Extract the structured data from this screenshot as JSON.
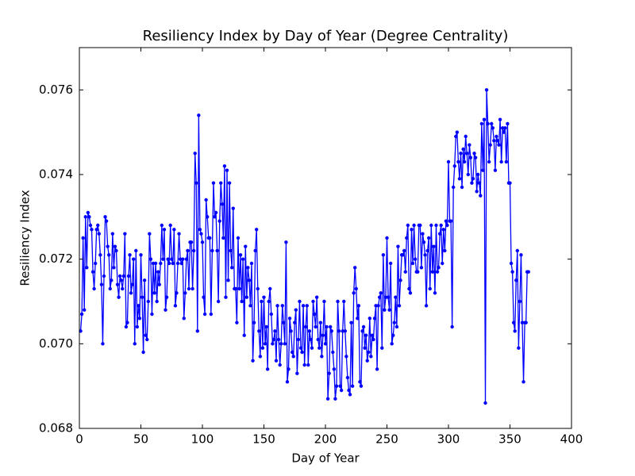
{
  "chart_data": {
    "type": "line",
    "title": "Resiliency Index by Day of Year (Degree Centrality)",
    "xlabel": "Day of Year",
    "ylabel": "Resiliency Index",
    "color": "#0000ff",
    "xlim": [
      0,
      400
    ],
    "xticks": [
      0,
      50,
      100,
      150,
      200,
      250,
      300,
      350,
      400
    ],
    "ylim": [
      0.068,
      0.077
    ],
    "yticks": [
      0.068,
      {
        "value": 0.07,
        "label": "0.070"
      },
      0.072,
      0.074,
      0.076
    ],
    "x": [
      1,
      2,
      3,
      4,
      5,
      6,
      7,
      8,
      9,
      10,
      11,
      12,
      13,
      14,
      15,
      16,
      17,
      18,
      19,
      20,
      21,
      22,
      23,
      24,
      25,
      26,
      27,
      28,
      29,
      30,
      31,
      32,
      33,
      34,
      35,
      36,
      37,
      38,
      39,
      40,
      41,
      42,
      43,
      44,
      45,
      46,
      47,
      48,
      49,
      50,
      51,
      52,
      53,
      54,
      55,
      56,
      57,
      58,
      59,
      60,
      61,
      62,
      63,
      64,
      65,
      66,
      67,
      68,
      69,
      70,
      71,
      72,
      73,
      74,
      75,
      76,
      77,
      78,
      79,
      80,
      81,
      82,
      83,
      84,
      85,
      86,
      87,
      88,
      89,
      90,
      91,
      92,
      93,
      94,
      95,
      96,
      97,
      98,
      99,
      100,
      101,
      102,
      103,
      104,
      105,
      106,
      107,
      108,
      109,
      110,
      111,
      112,
      113,
      114,
      115,
      116,
      117,
      118,
      119,
      120,
      121,
      122,
      123,
      124,
      125,
      126,
      127,
      128,
      129,
      130,
      131,
      132,
      133,
      134,
      135,
      136,
      137,
      138,
      139,
      140,
      141,
      142,
      143,
      144,
      145,
      146,
      147,
      148,
      149,
      150,
      151,
      152,
      153,
      154,
      155,
      156,
      157,
      158,
      159,
      160,
      161,
      162,
      163,
      164,
      165,
      166,
      167,
      168,
      169,
      170,
      171,
      172,
      173,
      174,
      175,
      176,
      177,
      178,
      179,
      180,
      181,
      182,
      183,
      184,
      185,
      186,
      187,
      188,
      189,
      190,
      191,
      192,
      193,
      194,
      195,
      196,
      197,
      198,
      199,
      200,
      201,
      202,
      203,
      204,
      205,
      206,
      207,
      208,
      209,
      210,
      211,
      212,
      213,
      214,
      215,
      216,
      217,
      218,
      219,
      220,
      221,
      222,
      223,
      224,
      225,
      226,
      227,
      228,
      229,
      230,
      231,
      232,
      233,
      234,
      235,
      236,
      237,
      238,
      239,
      240,
      241,
      242,
      243,
      244,
      245,
      246,
      247,
      248,
      249,
      250,
      251,
      252,
      253,
      254,
      255,
      256,
      257,
      258,
      259,
      260,
      261,
      262,
      263,
      264,
      265,
      266,
      267,
      268,
      269,
      270,
      271,
      272,
      273,
      274,
      275,
      276,
      277,
      278,
      279,
      280,
      281,
      282,
      283,
      284,
      285,
      286,
      287,
      288,
      289,
      290,
      291,
      292,
      293,
      294,
      295,
      296,
      297,
      298,
      299,
      300,
      301,
      302,
      303,
      304,
      305,
      306,
      307,
      308,
      309,
      310,
      311,
      312,
      313,
      314,
      315,
      316,
      317,
      318,
      319,
      320,
      321,
      322,
      323,
      324,
      325,
      326,
      327,
      328,
      329,
      330,
      331,
      332,
      333,
      334,
      335,
      336,
      337,
      338,
      339,
      340,
      341,
      342,
      343,
      344,
      345,
      346,
      347,
      348,
      349,
      350,
      351,
      352,
      353,
      354,
      355,
      356,
      357,
      358,
      359,
      360,
      361,
      362,
      363,
      364,
      365
    ],
    "values": [
      0.0703,
      0.0707,
      0.0725,
      0.0708,
      0.073,
      0.0718,
      0.0731,
      0.073,
      0.0728,
      0.0727,
      0.0717,
      0.0713,
      0.0719,
      0.0727,
      0.0728,
      0.0726,
      0.0721,
      0.0714,
      0.07,
      0.0716,
      0.073,
      0.0729,
      0.0723,
      0.0721,
      0.0713,
      0.0715,
      0.0726,
      0.0718,
      0.0723,
      0.0722,
      0.0714,
      0.0711,
      0.0716,
      0.0715,
      0.0713,
      0.0716,
      0.0726,
      0.0704,
      0.0705,
      0.0716,
      0.0721,
      0.0712,
      0.0714,
      0.072,
      0.07,
      0.0722,
      0.0704,
      0.0709,
      0.0706,
      0.0721,
      0.0711,
      0.0698,
      0.0715,
      0.0702,
      0.0701,
      0.071,
      0.0726,
      0.072,
      0.0707,
      0.0719,
      0.0712,
      0.0719,
      0.071,
      0.0717,
      0.0714,
      0.0719,
      0.0728,
      0.072,
      0.0727,
      0.0708,
      0.0711,
      0.072,
      0.0719,
      0.0728,
      0.072,
      0.0719,
      0.0727,
      0.0709,
      0.0712,
      0.0719,
      0.0726,
      0.072,
      0.0719,
      0.072,
      0.0706,
      0.0712,
      0.072,
      0.0722,
      0.0713,
      0.0724,
      0.0724,
      0.0713,
      0.0722,
      0.0745,
      0.0738,
      0.0703,
      0.0754,
      0.0727,
      0.0726,
      0.0724,
      0.0711,
      0.0707,
      0.0734,
      0.073,
      0.0725,
      0.0725,
      0.0707,
      0.0722,
      0.0738,
      0.073,
      0.0731,
      0.0722,
      0.071,
      0.0729,
      0.0738,
      0.0733,
      0.0725,
      0.0742,
      0.0711,
      0.0741,
      0.0715,
      0.0738,
      0.0722,
      0.0718,
      0.0732,
      0.0713,
      0.0713,
      0.0705,
      0.0725,
      0.0713,
      0.0721,
      0.071,
      0.072,
      0.0702,
      0.0723,
      0.0711,
      0.0718,
      0.0715,
      0.0709,
      0.0719,
      0.0696,
      0.0705,
      0.0722,
      0.0727,
      0.0713,
      0.0703,
      0.0697,
      0.071,
      0.0699,
      0.0711,
      0.07,
      0.0704,
      0.0694,
      0.071,
      0.0713,
      0.0707,
      0.07,
      0.0701,
      0.0703,
      0.0696,
      0.0709,
      0.0701,
      0.0695,
      0.07,
      0.0709,
      0.0705,
      0.07,
      0.0724,
      0.0691,
      0.0694,
      0.0706,
      0.0703,
      0.0698,
      0.0697,
      0.0705,
      0.0708,
      0.0693,
      0.0701,
      0.071,
      0.0699,
      0.0698,
      0.0709,
      0.0695,
      0.0704,
      0.0709,
      0.0695,
      0.0703,
      0.0701,
      0.0699,
      0.071,
      0.0707,
      0.0704,
      0.0711,
      0.0701,
      0.0699,
      0.0705,
      0.0697,
      0.0702,
      0.071,
      0.07,
      0.0704,
      0.0687,
      0.0693,
      0.0704,
      0.0703,
      0.0698,
      0.0694,
      0.0687,
      0.069,
      0.071,
      0.0703,
      0.069,
      0.0689,
      0.0703,
      0.071,
      0.0703,
      0.0697,
      0.0692,
      0.0689,
      0.0688,
      0.0705,
      0.069,
      0.0712,
      0.0718,
      0.0713,
      0.0706,
      0.0709,
      0.0691,
      0.069,
      0.0703,
      0.0704,
      0.0699,
      0.0702,
      0.0696,
      0.0698,
      0.0706,
      0.0697,
      0.0702,
      0.0701,
      0.0706,
      0.0709,
      0.0694,
      0.0709,
      0.0711,
      0.0712,
      0.0699,
      0.0721,
      0.0708,
      0.0711,
      0.0725,
      0.0711,
      0.0708,
      0.0719,
      0.07,
      0.0702,
      0.0705,
      0.0711,
      0.0704,
      0.0723,
      0.0709,
      0.0715,
      0.0721,
      0.0721,
      0.0722,
      0.0717,
      0.0725,
      0.0728,
      0.0713,
      0.0712,
      0.0727,
      0.0719,
      0.0728,
      0.072,
      0.0717,
      0.0717,
      0.0728,
      0.0728,
      0.0718,
      0.0726,
      0.0724,
      0.0721,
      0.0709,
      0.0722,
      0.0725,
      0.0713,
      0.0728,
      0.0717,
      0.0723,
      0.0712,
      0.0728,
      0.0717,
      0.0718,
      0.0726,
      0.0728,
      0.0719,
      0.0727,
      0.0722,
      0.0729,
      0.0728,
      0.0743,
      0.0729,
      0.0729,
      0.0704,
      0.0737,
      0.0742,
      0.0749,
      0.075,
      0.0743,
      0.0739,
      0.0745,
      0.0737,
      0.0746,
      0.0743,
      0.0749,
      0.0745,
      0.074,
      0.0747,
      0.0744,
      0.0738,
      0.0739,
      0.0745,
      0.0744,
      0.0736,
      0.074,
      0.0738,
      0.0735,
      0.0752,
      0.0741,
      0.0753,
      0.0686,
      0.076,
      0.0752,
      0.0743,
      0.0747,
      0.0752,
      0.0751,
      0.0748,
      0.0741,
      0.0749,
      0.0748,
      0.0747,
      0.0753,
      0.0743,
      0.0751,
      0.075,
      0.0751,
      0.0743,
      0.0752,
      0.0738,
      0.0738,
      0.0719,
      0.0717,
      0.0705,
      0.0703,
      0.0715,
      0.0722,
      0.0699,
      0.071,
      0.0721,
      0.0705,
      0.0691,
      0.0705,
      0.0705,
      0.0717,
      0.0717
    ]
  }
}
